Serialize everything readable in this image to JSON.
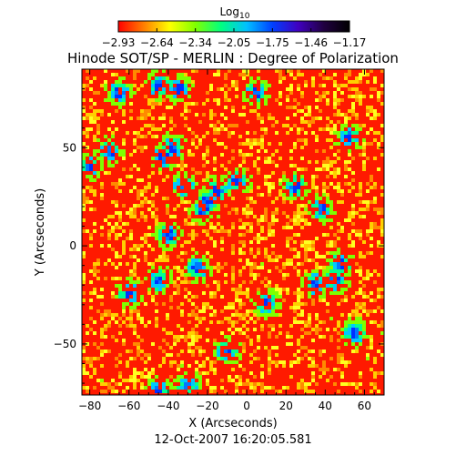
{
  "chart_data": {
    "type": "heatmap",
    "title": "Hinode SOT/SP - MERLIN : Degree of Polarization",
    "colorbar": {
      "label_base": "Log",
      "label_sub": "10",
      "ticks": [
        "−2.93",
        "−2.64",
        "−2.34",
        "−2.05",
        "−1.75",
        "−1.46",
        "−1.17"
      ],
      "range": [
        -2.93,
        -1.17
      ],
      "colormap": "rainbow (red-yellow-green-cyan-blue-purple-black)",
      "colors": [
        "#ff0000",
        "#ff7f00",
        "#ffff00",
        "#80ff00",
        "#00ff80",
        "#00c0ff",
        "#0040ff",
        "#4000c0",
        "#200040",
        "#000000"
      ]
    },
    "xlabel": "X (Arcseconds)",
    "ylabel": "Y (Arcseconds)",
    "xlim": [
      -84,
      70
    ],
    "ylim": [
      -76,
      90
    ],
    "xticks": [
      -80,
      -60,
      -40,
      -20,
      0,
      20,
      40,
      60
    ],
    "yticks": [
      -50,
      0,
      50
    ],
    "timestamp": "12-Oct-2007 16:20:05.581",
    "field": "degree of polarization, dominated by red values (around -2.9 to -2.6) with yellow/green speckle network and sparse cyan-blue patches up to -1.2"
  }
}
